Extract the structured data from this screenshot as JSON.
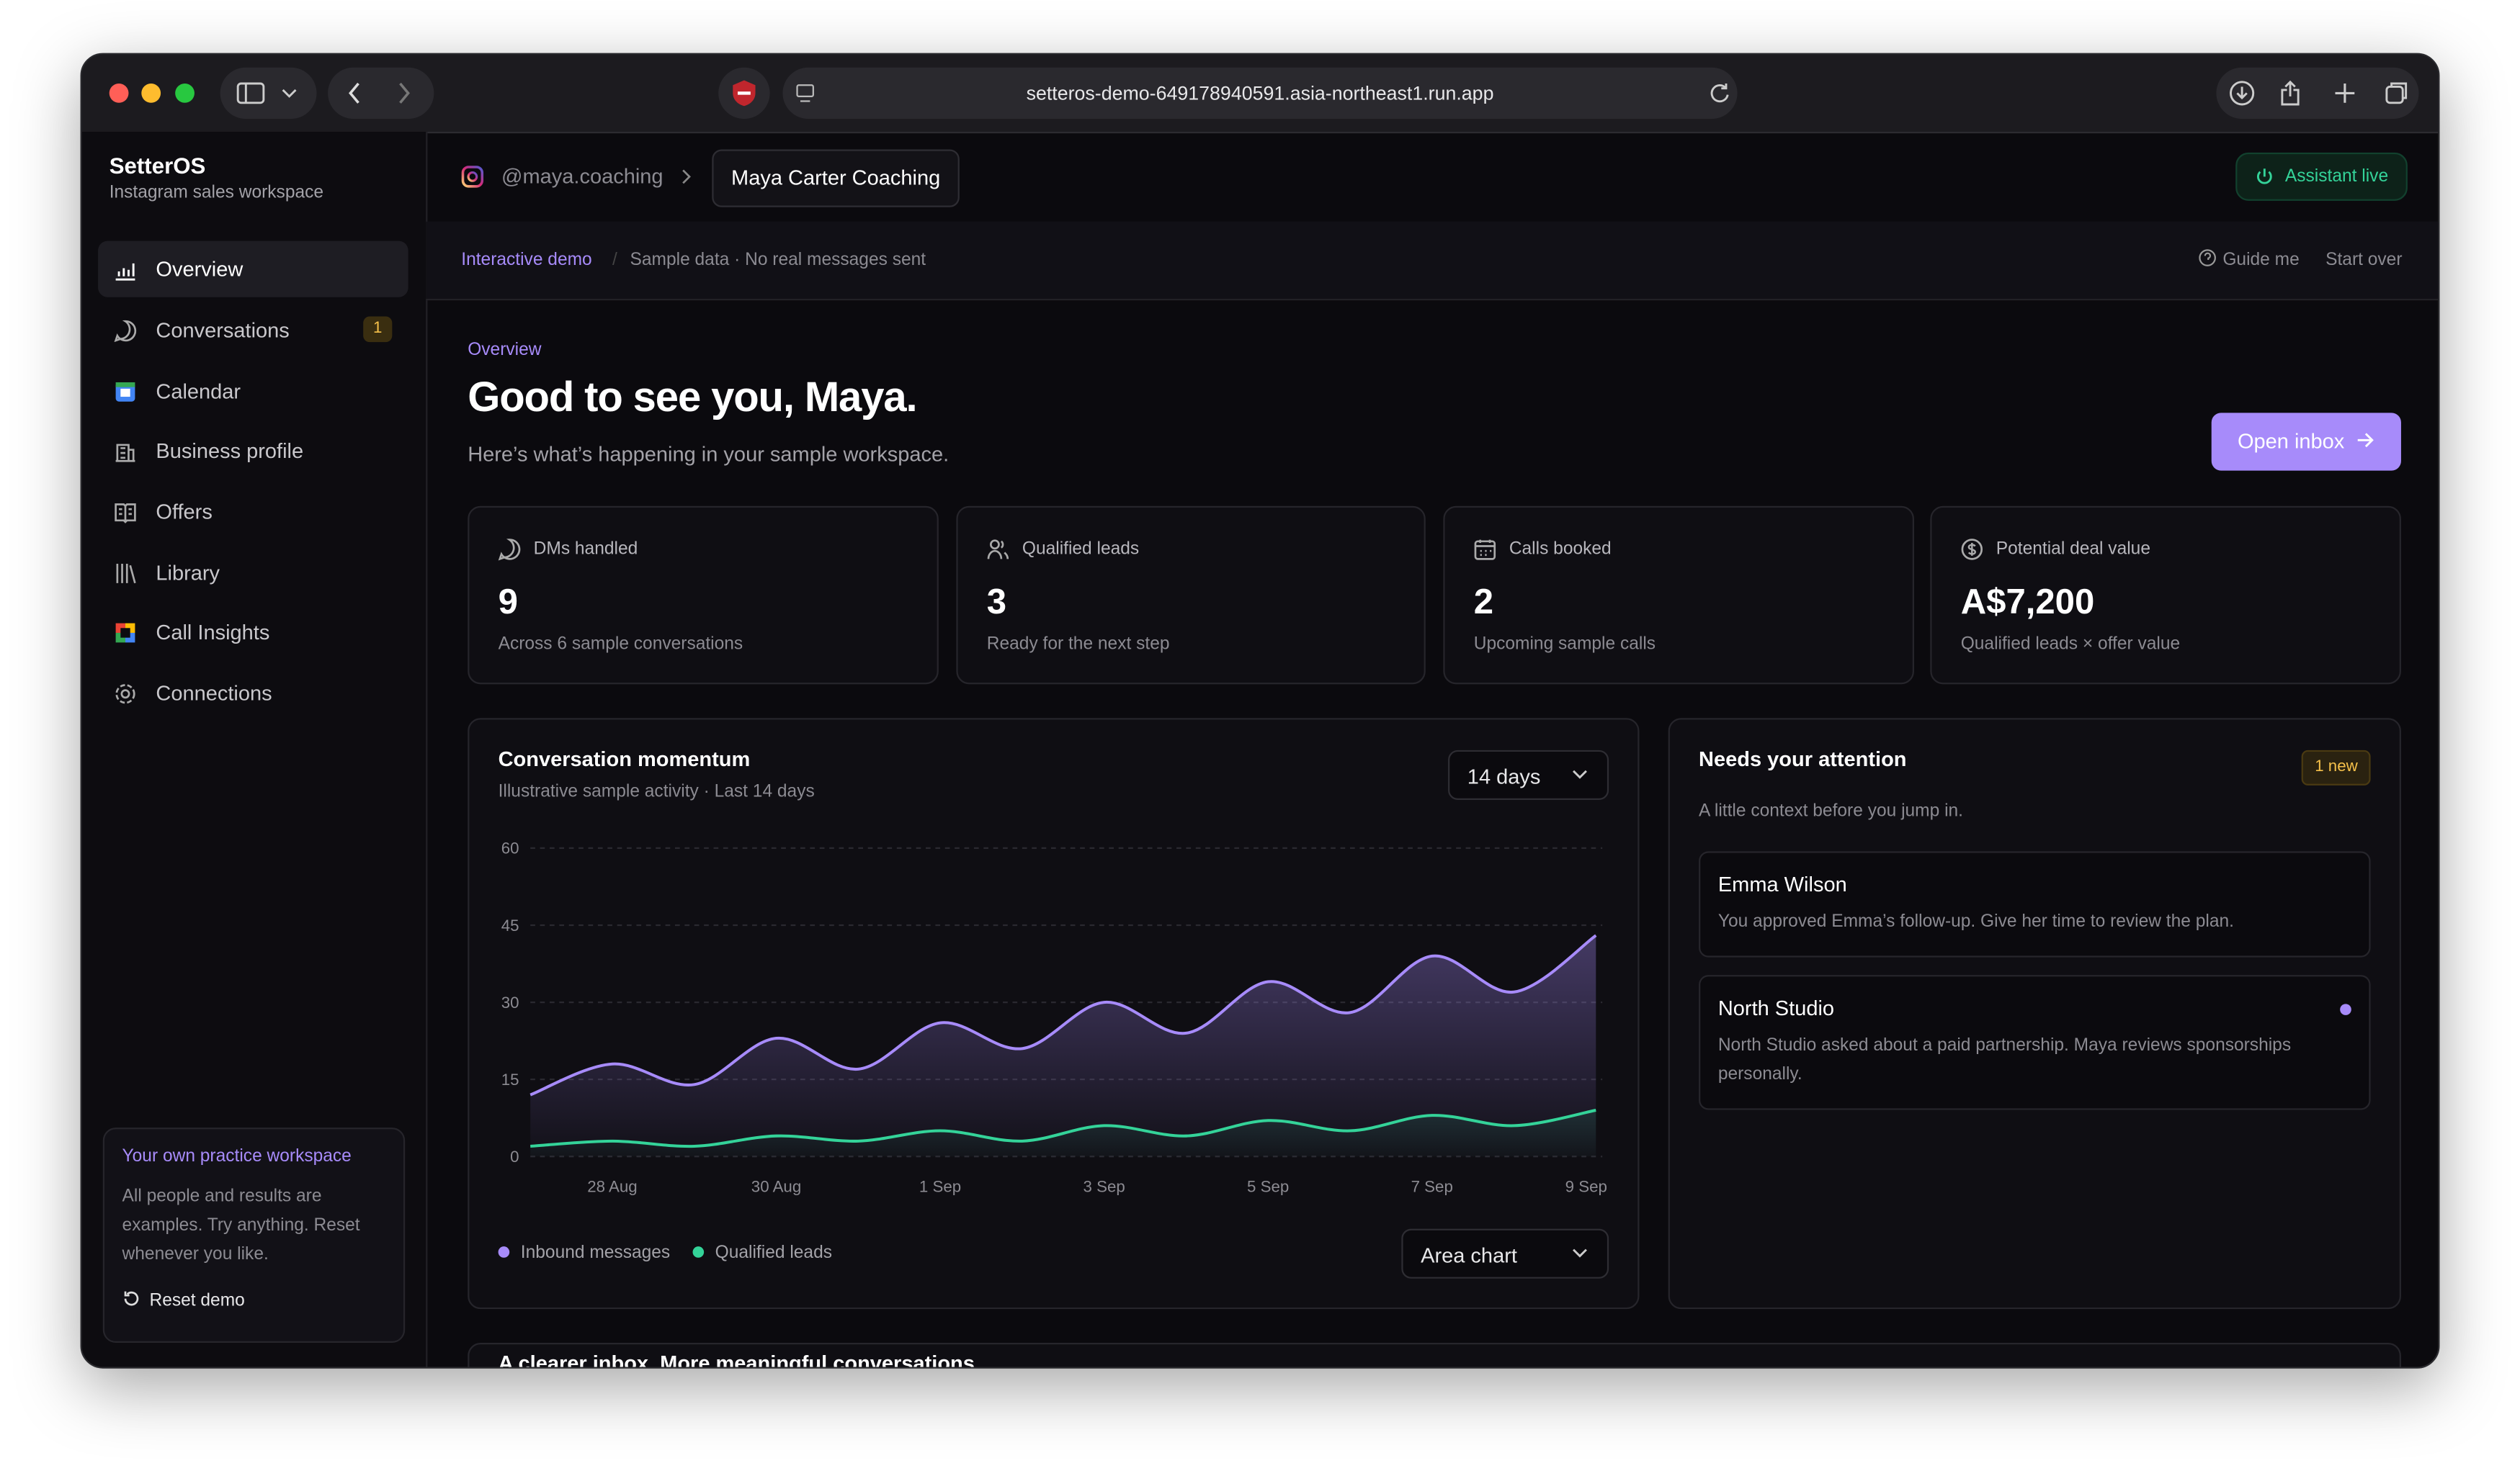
{
  "browser": {
    "url": "setteros-demo-649178940591.asia-northeast1.run.app"
  },
  "sidebar": {
    "brand": "SetterOS",
    "subtitle": "Instagram sales workspace",
    "nav": [
      {
        "label": "Overview"
      },
      {
        "label": "Conversations",
        "badge": "1"
      },
      {
        "label": "Calendar"
      },
      {
        "label": "Business profile"
      },
      {
        "label": "Offers"
      },
      {
        "label": "Library"
      },
      {
        "label": "Call Insights"
      },
      {
        "label": "Connections"
      }
    ],
    "promo": {
      "title": "Your own practice workspace",
      "text": "All people and results are examples. Try anything. Reset whenever you like.",
      "action": "Reset demo"
    }
  },
  "header": {
    "handle": "@maya.coaching",
    "workspace": "Maya Carter Coaching",
    "status": "Assistant live"
  },
  "demo_bar": {
    "tag": "Interactive demo",
    "note": "Sample data · No real messages sent",
    "guide": "Guide me",
    "reset": "Start over"
  },
  "page": {
    "eyebrow": "Overview",
    "title": "Good to see you, Maya.",
    "subtitle": "Here’s what’s happening in your sample workspace.",
    "action": "Open inbox"
  },
  "stats": [
    {
      "label": "DMs handled",
      "value": "9",
      "note": "Across 6 sample conversations"
    },
    {
      "label": "Qualified leads",
      "value": "3",
      "note": "Ready for the next step"
    },
    {
      "label": "Calls booked",
      "value": "2",
      "note": "Upcoming sample calls"
    },
    {
      "label": "Potential deal value",
      "value": "A$7,200",
      "note": "Qualified leads × offer value"
    }
  ],
  "chart_data": {
    "type": "area",
    "title": "Conversation momentum",
    "subtitle": "Illustrative sample activity · Last 14 days",
    "range": "14 days",
    "view": "Area chart",
    "categories": [
      null,
      "28 Aug",
      null,
      "30 Aug",
      null,
      "1 Sep",
      null,
      "3 Sep",
      null,
      "5 Sep",
      null,
      "7 Sep",
      null,
      "9 Sep"
    ],
    "series": [
      {
        "name": "Inbound messages",
        "color": "#a78bfa",
        "values": [
          12,
          18,
          14,
          23,
          17,
          26,
          21,
          30,
          24,
          34,
          28,
          39,
          32,
          43
        ]
      },
      {
        "name": "Qualified leads",
        "color": "#34d399",
        "values": [
          2,
          3,
          2,
          4,
          3,
          5,
          3,
          6,
          4,
          7,
          5,
          8,
          6,
          9
        ]
      }
    ],
    "ylim": [
      0,
      60
    ],
    "yticks": [
      0,
      15,
      30,
      45,
      60
    ],
    "grid": true
  },
  "attention": {
    "title": "Needs your attention",
    "badge": "1 new",
    "subtitle": "A little context before you jump in.",
    "items": [
      {
        "name": "Emma Wilson",
        "text": "You approved Emma’s follow-up. Give her time to review the plan.",
        "unread": false
      },
      {
        "name": "North Studio",
        "text": "North Studio asked about a paid partnership. Maya reviews sponsorships personally.",
        "unread": true
      }
    ]
  },
  "teaser": {
    "title": "A clearer inbox. More meaningful conversations."
  }
}
